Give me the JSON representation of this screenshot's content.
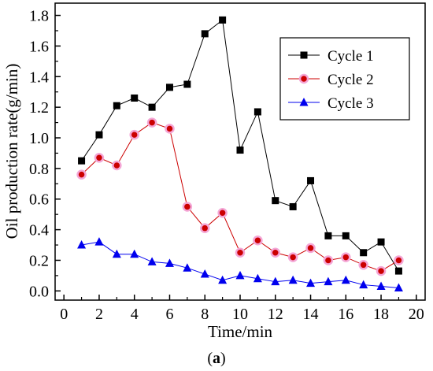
{
  "chart_data": {
    "type": "line",
    "title": "",
    "xlabel": "Time/min",
    "ylabel": "Oil production rate(g/min)",
    "caption_prefix": "(",
    "caption_letter": "a",
    "caption_suffix": ")",
    "xlim": [
      -0.5,
      20.5
    ],
    "ylim": [
      -0.06,
      1.88
    ],
    "xticks": [
      "0",
      "2",
      "4",
      "6",
      "8",
      "10",
      "12",
      "14",
      "16",
      "18",
      "20"
    ],
    "yticks": [
      "0.0",
      "0.2",
      "0.4",
      "0.6",
      "0.8",
      "1.0",
      "1.2",
      "1.4",
      "1.6",
      "1.8"
    ],
    "grid": false,
    "legend_position": "top-right",
    "x": [
      1,
      2,
      3,
      4,
      5,
      6,
      7,
      8,
      9,
      10,
      11,
      12,
      13,
      14,
      15,
      16,
      17,
      18,
      19
    ],
    "series": [
      {
        "name": "Cycle 1",
        "color": "#000000",
        "marker": "square",
        "values": [
          0.85,
          1.02,
          1.21,
          1.26,
          1.2,
          1.33,
          1.35,
          1.68,
          1.77,
          0.92,
          1.17,
          0.59,
          0.55,
          0.72,
          0.36,
          0.36,
          0.25,
          0.32,
          0.13
        ]
      },
      {
        "name": "Cycle 2",
        "color": "#cc0000",
        "marker": "circle",
        "values": [
          0.76,
          0.87,
          0.82,
          1.02,
          1.1,
          1.06,
          0.55,
          0.41,
          0.51,
          0.25,
          0.33,
          0.25,
          0.22,
          0.28,
          0.2,
          0.22,
          0.17,
          0.13,
          0.2
        ]
      },
      {
        "name": "Cycle 3",
        "color": "#0000ee",
        "marker": "triangle",
        "values": [
          0.3,
          0.32,
          0.24,
          0.24,
          0.19,
          0.18,
          0.15,
          0.11,
          0.07,
          0.1,
          0.08,
          0.06,
          0.07,
          0.05,
          0.06,
          0.07,
          0.04,
          0.03,
          0.02
        ]
      }
    ]
  }
}
